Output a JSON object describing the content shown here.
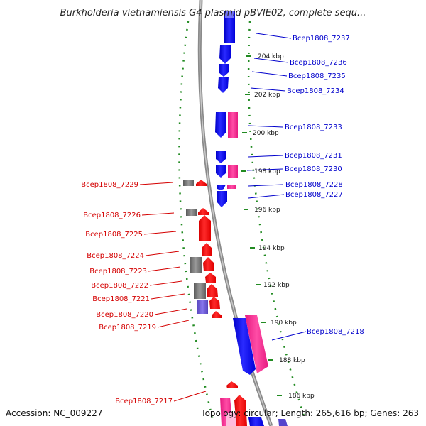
{
  "header": {
    "title": "Burkholderia vietnamiensis G4 plasmid pBVIE02, complete sequ..."
  },
  "footer": {
    "accession": "Accession: NC_009227",
    "summary": "Topology: circular; Length: 265,616 bp; Genes: 263"
  },
  "ruler_ticks": [
    "204 kbp",
    "202 kbp",
    "200 kbp",
    "198 kbp",
    "196 kbp",
    "194 kbp",
    "192 kbp",
    "190 kbp",
    "188 kbp",
    "186 kbp"
  ],
  "genes_reverse": [
    "Bcep1808_7229",
    "Bcep1808_7226",
    "Bcep1808_7225",
    "Bcep1808_7224",
    "Bcep1808_7223",
    "Bcep1808_7222",
    "Bcep1808_7221",
    "Bcep1808_7220",
    "Bcep1808_7219",
    "Bcep1808_7217"
  ],
  "genes_forward": [
    "Bcep1808_7237",
    "Bcep1808_7236",
    "Bcep1808_7235",
    "Bcep1808_7234",
    "Bcep1808_7233",
    "Bcep1808_7231",
    "Bcep1808_7230",
    "Bcep1808_7228",
    "Bcep1808_7227",
    "Bcep1808_7218"
  ],
  "colors": {
    "forward_cds": "#0000ff",
    "reverse_cds": "#ff0000",
    "rna_feature": "#ff3399",
    "other_feature": "#777777",
    "misc_feature": "#6655cc",
    "backbone": "#8a8a8a",
    "gc_dots": "#228b22",
    "label_reverse": "#d40000",
    "label_forward": "#0000cc"
  }
}
